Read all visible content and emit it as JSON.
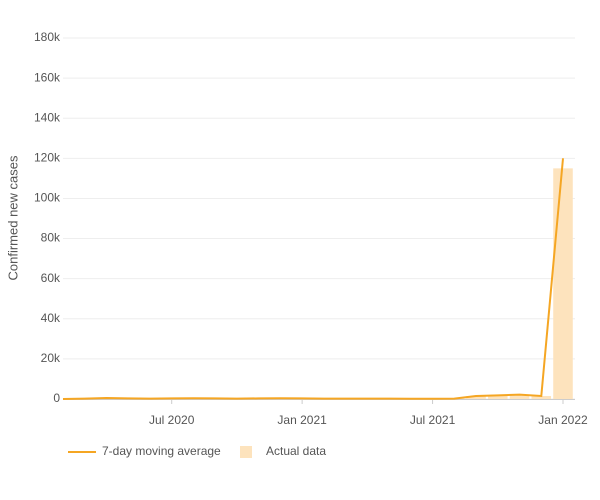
{
  "chart_data": {
    "type": "line",
    "y_label": "Confirmed new cases",
    "x": [
      "2020-02",
      "2020-03",
      "2020-04",
      "2020-05",
      "2020-06",
      "2020-07",
      "2020-08",
      "2020-09",
      "2020-10",
      "2020-11",
      "2020-12",
      "2021-01",
      "2021-02",
      "2021-03",
      "2021-04",
      "2021-05",
      "2021-06",
      "2021-07",
      "2021-08",
      "2021-09",
      "2021-10",
      "2021-11",
      "2021-12",
      "2022-01"
    ],
    "series": [
      {
        "name": "7-day moving average",
        "color": "#f5a623",
        "values": [
          0,
          200,
          500,
          300,
          200,
          300,
          400,
          300,
          200,
          300,
          400,
          300,
          200,
          200,
          200,
          200,
          150,
          100,
          200,
          1500,
          1800,
          2200,
          1500,
          120000
        ]
      },
      {
        "name": "Actual data",
        "color": "#fde3bd",
        "values": [
          0,
          200,
          500,
          300,
          200,
          300,
          400,
          300,
          200,
          300,
          400,
          300,
          200,
          200,
          200,
          200,
          150,
          100,
          200,
          1500,
          1800,
          2200,
          1500,
          115000
        ]
      }
    ],
    "xlim": [
      "2020-02",
      "2022-01"
    ],
    "xticks": [
      {
        "value": "2020-07",
        "label": "Jul 2020"
      },
      {
        "value": "2021-01",
        "label": "Jan 2021"
      },
      {
        "value": "2021-07",
        "label": "Jul 2021"
      },
      {
        "value": "2022-01",
        "label": "Jan 2022"
      }
    ],
    "ylim": [
      0,
      180000
    ],
    "yticks": [
      0,
      {
        "value": 20000,
        "label": "20k"
      },
      {
        "value": 40000,
        "label": "40k"
      },
      {
        "value": 60000,
        "label": "60k"
      },
      {
        "value": 80000,
        "label": "80k"
      },
      {
        "value": 100000,
        "label": "100k"
      },
      {
        "value": 120000,
        "label": "120k"
      },
      {
        "value": 140000,
        "label": "140k"
      },
      {
        "value": 160000,
        "label": "160k"
      },
      {
        "value": 180000,
        "label": "180k"
      }
    ],
    "grid": true,
    "legend": "bottom"
  }
}
